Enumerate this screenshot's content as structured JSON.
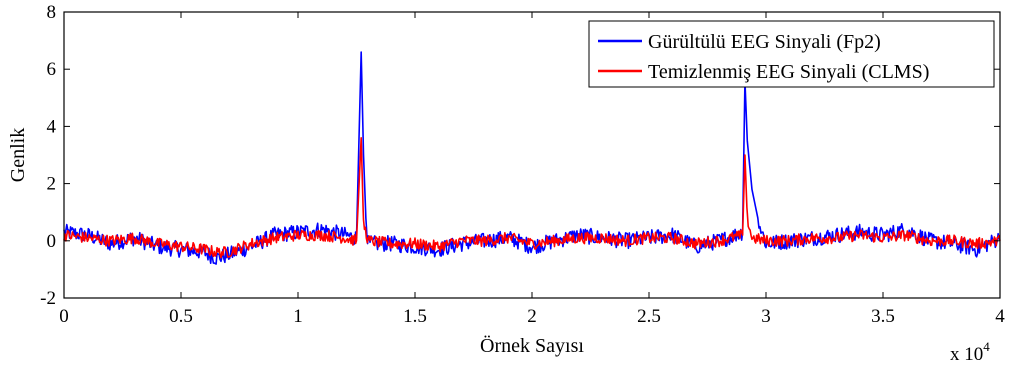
{
  "chart_data": {
    "type": "line",
    "xlabel": "Örnek Sayısı",
    "ylabel": "Genlik",
    "x_multiplier_label": "x 10",
    "x_multiplier_exponent": "4",
    "xlim": [
      0,
      4
    ],
    "ylim": [
      -2,
      8
    ],
    "x_ticks": [
      0,
      0.5,
      1,
      1.5,
      2,
      2.5,
      3,
      3.5,
      4
    ],
    "x_tick_labels": [
      "0",
      "0.5",
      "1",
      "1.5",
      "2",
      "2.5",
      "3",
      "3.5",
      "4"
    ],
    "y_ticks": [
      -2,
      0,
      2,
      4,
      6,
      8
    ],
    "y_tick_labels": [
      "-2",
      "0",
      "2",
      "4",
      "6",
      "8"
    ],
    "grid": false,
    "legend_position": "top-right",
    "series": [
      {
        "name": "Gürültülü EEG Sinyali (Fp2)",
        "color": "#0000ff",
        "x": [
          0,
          0.1,
          0.2,
          0.3,
          0.4,
          0.5,
          0.6,
          0.65,
          0.7,
          0.8,
          0.9,
          1.0,
          1.1,
          1.2,
          1.25,
          1.27,
          1.28,
          1.29,
          1.3,
          1.4,
          1.5,
          1.6,
          1.7,
          1.8,
          1.9,
          2.0,
          2.1,
          2.2,
          2.3,
          2.4,
          2.5,
          2.6,
          2.7,
          2.8,
          2.9,
          2.91,
          2.92,
          2.94,
          2.97,
          3.0,
          3.1,
          3.2,
          3.3,
          3.4,
          3.5,
          3.6,
          3.7,
          3.8,
          3.9,
          4.0
        ],
        "y": [
          0.3,
          0.2,
          -0.1,
          0.1,
          -0.2,
          -0.3,
          -0.4,
          -0.6,
          -0.5,
          -0.2,
          0.2,
          0.3,
          0.4,
          0.2,
          0.1,
          6.6,
          3.0,
          0.8,
          -0.1,
          -0.1,
          -0.2,
          -0.3,
          -0.1,
          0.0,
          0.1,
          -0.2,
          0.0,
          0.2,
          0.1,
          0.0,
          0.1,
          0.2,
          -0.2,
          0.0,
          0.3,
          5.6,
          3.5,
          1.8,
          0.6,
          -0.1,
          0.0,
          0.1,
          0.2,
          0.3,
          0.2,
          0.4,
          0.0,
          -0.1,
          -0.3,
          0.1
        ]
      },
      {
        "name": "Temizlenmiş EEG Sinyali (CLMS)",
        "color": "#ff0000",
        "x": [
          0,
          0.1,
          0.2,
          0.3,
          0.4,
          0.5,
          0.6,
          0.65,
          0.7,
          0.8,
          0.9,
          1.0,
          1.1,
          1.2,
          1.25,
          1.27,
          1.28,
          1.3,
          1.4,
          1.5,
          1.6,
          1.7,
          1.8,
          1.9,
          2.0,
          2.1,
          2.2,
          2.3,
          2.4,
          2.5,
          2.6,
          2.7,
          2.8,
          2.9,
          2.91,
          2.92,
          2.94,
          3.0,
          3.1,
          3.2,
          3.3,
          3.4,
          3.5,
          3.6,
          3.7,
          3.8,
          3.9,
          4.0
        ],
        "y": [
          0.2,
          0.1,
          0.0,
          0.1,
          -0.1,
          -0.2,
          -0.3,
          -0.4,
          -0.4,
          -0.1,
          0.1,
          0.2,
          0.2,
          0.1,
          0.0,
          3.6,
          0.6,
          0.0,
          -0.1,
          -0.1,
          -0.2,
          0.0,
          0.0,
          0.1,
          -0.1,
          0.0,
          0.1,
          0.1,
          0.0,
          0.1,
          0.1,
          -0.1,
          0.0,
          0.2,
          3.0,
          0.8,
          0.1,
          0.0,
          0.0,
          0.1,
          0.1,
          0.2,
          0.1,
          0.2,
          0.0,
          0.0,
          -0.1,
          0.0
        ]
      }
    ]
  }
}
